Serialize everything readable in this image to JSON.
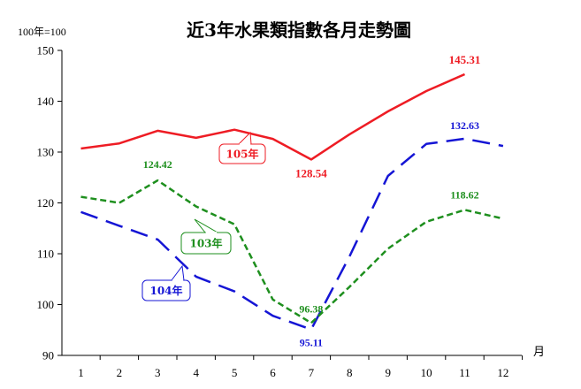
{
  "chart_data": {
    "type": "line",
    "title": "近3年水果類指數各月走勢圖",
    "unit_label": "100年=100",
    "x_axis_label": "月",
    "x": [
      1,
      2,
      3,
      4,
      5,
      6,
      7,
      8,
      9,
      10,
      11,
      12
    ],
    "x_tick_labels": [
      "1",
      "2",
      "3",
      "4",
      "5",
      "6",
      "7",
      "8",
      "9",
      "10",
      "11",
      "12"
    ],
    "ylim": [
      90,
      150
    ],
    "y_ticks": [
      90,
      100,
      110,
      120,
      130,
      140,
      150
    ],
    "y_tick_labels": [
      "90",
      "100",
      "110",
      "120",
      "130",
      "140",
      "150"
    ],
    "grid": false,
    "series": [
      {
        "name": "105年",
        "color": "#ee1c24",
        "dash": "solid",
        "values": [
          130.7,
          131.7,
          134.2,
          132.8,
          134.4,
          132.6,
          128.54,
          133.5,
          138.0,
          142.0,
          145.31,
          null
        ],
        "point_labels": [
          {
            "index": 6,
            "text": "128.54"
          },
          {
            "index": 10,
            "text": "145.31"
          }
        ]
      },
      {
        "name": "104年",
        "color": "#1515d5",
        "dash": "long-dash",
        "values": [
          118.2,
          115.5,
          112.8,
          105.5,
          102.6,
          97.8,
          95.11,
          109.5,
          125.3,
          131.6,
          132.63,
          131.2
        ],
        "point_labels": [
          {
            "index": 6,
            "text": "95.11"
          },
          {
            "index": 10,
            "text": "132.63"
          }
        ]
      },
      {
        "name": "103年",
        "color": "#1e8f1e",
        "dash": "short-dash",
        "values": [
          121.2,
          120.0,
          124.42,
          119.3,
          115.8,
          101.0,
          96.38,
          103.5,
          111.0,
          116.3,
          118.62,
          116.9
        ],
        "point_labels": [
          {
            "index": 2,
            "text": "124.42"
          },
          {
            "index": 6,
            "text": "96.38"
          },
          {
            "index": 10,
            "text": "118.62"
          }
        ]
      }
    ]
  }
}
